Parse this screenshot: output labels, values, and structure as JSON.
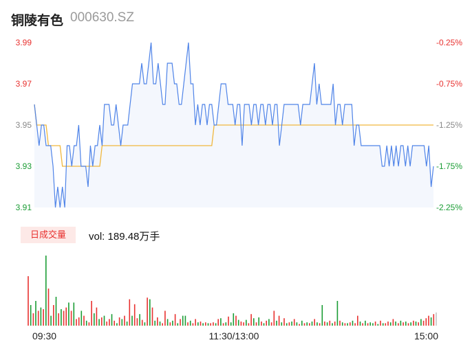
{
  "header": {
    "name": "铜陵有色",
    "code": "000630.SZ"
  },
  "volume_panel": {
    "label": "日成交量",
    "vol_text": "vol: 189.48万手"
  },
  "colors": {
    "price_line": "#4e83e8",
    "avg_line": "#f0b73c",
    "price_fill": "#f4f7fd",
    "up": "#e8312f",
    "down": "#1a9c34",
    "flat": "#888888"
  },
  "chart_data": {
    "type": "line",
    "title": "",
    "xlabel": "",
    "ylabel": "",
    "ylim": [
      3.91,
      3.99
    ],
    "y_ticks": [
      "3.99",
      "3.97",
      "3.95",
      "3.93",
      "3.91"
    ],
    "y_tick_colors": [
      "#e8312f",
      "#e8312f",
      "#888888",
      "#1a9c34",
      "#1a9c34"
    ],
    "pct_ticks": [
      "-0.25%",
      "-0.75%",
      "-1.25%",
      "-1.75%",
      "-2.25%"
    ],
    "x_ticks": [
      "09:30",
      "11:30/13:00",
      "15:00"
    ],
    "series": [
      {
        "values": [
          3.96,
          3.95,
          3.94,
          3.95,
          3.95,
          3.94,
          3.94,
          3.94,
          3.93,
          3.91,
          3.92,
          3.91,
          3.92,
          3.91,
          3.94,
          3.94,
          3.93,
          3.94,
          3.94,
          3.95,
          3.93,
          3.93,
          3.93,
          3.92,
          3.94,
          3.93,
          3.94,
          3.94,
          3.95,
          3.94,
          3.96,
          3.96,
          3.96,
          3.95,
          3.95,
          3.96,
          3.95,
          3.94,
          3.95,
          3.95,
          3.95,
          3.96,
          3.97,
          3.97,
          3.97,
          3.97,
          3.98,
          3.97,
          3.97,
          3.98,
          3.99,
          3.97,
          3.97,
          3.98,
          3.97,
          3.96,
          3.96,
          3.98,
          3.98,
          3.98,
          3.97,
          3.97,
          3.96,
          3.96,
          3.97,
          3.98,
          3.99,
          3.97,
          3.97,
          3.95,
          3.96,
          3.95,
          3.96,
          3.96,
          3.95,
          3.96,
          3.96,
          3.95,
          3.95,
          3.96,
          3.97,
          3.97,
          3.97,
          3.96,
          3.96,
          3.96,
          3.95,
          3.96,
          3.96,
          3.94,
          3.96,
          3.96,
          3.96,
          3.95,
          3.96,
          3.96,
          3.95,
          3.96,
          3.96,
          3.95,
          3.96,
          3.96,
          3.95,
          3.96,
          3.96,
          3.94,
          3.95,
          3.96,
          3.96,
          3.96,
          3.96,
          3.96,
          3.96,
          3.96,
          3.95,
          3.96,
          3.96,
          3.96,
          3.96,
          3.97,
          3.98,
          3.96,
          3.97,
          3.96,
          3.96,
          3.96,
          3.96,
          3.96,
          3.97,
          3.95,
          3.96,
          3.96,
          3.95,
          3.96,
          3.96,
          3.96,
          3.96,
          3.94,
          3.95,
          3.95,
          3.94,
          3.94,
          3.94,
          3.94,
          3.94,
          3.94,
          3.94,
          3.94,
          3.94,
          3.93,
          3.93,
          3.94,
          3.93,
          3.94,
          3.93,
          3.94,
          3.93,
          3.94,
          3.94,
          3.93,
          3.94,
          3.93,
          3.94,
          3.94,
          3.94,
          3.94,
          3.94,
          3.94,
          3.93,
          3.94,
          3.92,
          3.93
        ],
        "color": "#4e83e8"
      },
      {
        "values": [
          3.96,
          3.95,
          3.95,
          3.95,
          3.95,
          3.95,
          3.94,
          3.94,
          3.94,
          3.94,
          3.94,
          3.94,
          3.93,
          3.93,
          3.93,
          3.93,
          3.93,
          3.93,
          3.93,
          3.93,
          3.93,
          3.93,
          3.93,
          3.93,
          3.93,
          3.93,
          3.93,
          3.93,
          3.93,
          3.94,
          3.94,
          3.94,
          3.94,
          3.94,
          3.94,
          3.94,
          3.94,
          3.94,
          3.94,
          3.94,
          3.94,
          3.94,
          3.94,
          3.94,
          3.94,
          3.94,
          3.94,
          3.94,
          3.94,
          3.94,
          3.94,
          3.94,
          3.94,
          3.94,
          3.94,
          3.94,
          3.94,
          3.94,
          3.94,
          3.94,
          3.94,
          3.94,
          3.94,
          3.94,
          3.94,
          3.94,
          3.94,
          3.94,
          3.94,
          3.94,
          3.94,
          3.94,
          3.94,
          3.94,
          3.94,
          3.94,
          3.94,
          3.95,
          3.95,
          3.95,
          3.95,
          3.95,
          3.95,
          3.95,
          3.95,
          3.95,
          3.95,
          3.95,
          3.95,
          3.95,
          3.95,
          3.95,
          3.95,
          3.95,
          3.95,
          3.95,
          3.95,
          3.95,
          3.95,
          3.95,
          3.95,
          3.95,
          3.95,
          3.95,
          3.95,
          3.95,
          3.95,
          3.95,
          3.95,
          3.95,
          3.95,
          3.95,
          3.95,
          3.95,
          3.95,
          3.95,
          3.95,
          3.95,
          3.95,
          3.95,
          3.95,
          3.95,
          3.95,
          3.95,
          3.95,
          3.95,
          3.95,
          3.95,
          3.95,
          3.95,
          3.95,
          3.95,
          3.95,
          3.95,
          3.95,
          3.95,
          3.95,
          3.95,
          3.95,
          3.95,
          3.95,
          3.95,
          3.95,
          3.95,
          3.95,
          3.95,
          3.95,
          3.95,
          3.95,
          3.95,
          3.95,
          3.95,
          3.95,
          3.95,
          3.95,
          3.95,
          3.95,
          3.95,
          3.95,
          3.95,
          3.95,
          3.95,
          3.95,
          3.95,
          3.95,
          3.95,
          3.95,
          3.95,
          3.95,
          3.95,
          3.95,
          3.95
        ],
        "color": "#f0b73c"
      }
    ],
    "volume": [
      {
        "v": 60,
        "d": "up"
      },
      {
        "v": 25,
        "d": "down"
      },
      {
        "v": 15,
        "d": "up"
      },
      {
        "v": 30,
        "d": "down"
      },
      {
        "v": 18,
        "d": "up"
      },
      {
        "v": 22,
        "d": "down"
      },
      {
        "v": 20,
        "d": "up"
      },
      {
        "v": 85,
        "d": "down"
      },
      {
        "v": 45,
        "d": "up"
      },
      {
        "v": 12,
        "d": "down"
      },
      {
        "v": 25,
        "d": "up"
      },
      {
        "v": 35,
        "d": "down"
      },
      {
        "v": 15,
        "d": "up"
      },
      {
        "v": 20,
        "d": "down"
      },
      {
        "v": 18,
        "d": "up"
      },
      {
        "v": 22,
        "d": "up"
      },
      {
        "v": 28,
        "d": "down"
      },
      {
        "v": 18,
        "d": "up"
      },
      {
        "v": 28,
        "d": "down"
      },
      {
        "v": 8,
        "d": "up"
      },
      {
        "v": 10,
        "d": "up"
      },
      {
        "v": 18,
        "d": "down"
      },
      {
        "v": 12,
        "d": "up"
      },
      {
        "v": 6,
        "d": "down"
      },
      {
        "v": 4,
        "d": "up"
      },
      {
        "v": 30,
        "d": "up"
      },
      {
        "v": 15,
        "d": "down"
      },
      {
        "v": 22,
        "d": "up"
      },
      {
        "v": 8,
        "d": "down"
      },
      {
        "v": 10,
        "d": "up"
      },
      {
        "v": 12,
        "d": "down"
      },
      {
        "v": 5,
        "d": "up"
      },
      {
        "v": 8,
        "d": "up"
      },
      {
        "v": 14,
        "d": "down"
      },
      {
        "v": 6,
        "d": "up"
      },
      {
        "v": 3,
        "d": "down"
      },
      {
        "v": 10,
        "d": "up"
      },
      {
        "v": 8,
        "d": "down"
      },
      {
        "v": 12,
        "d": "up"
      },
      {
        "v": 5,
        "d": "down"
      },
      {
        "v": 32,
        "d": "up"
      },
      {
        "v": 12,
        "d": "down"
      },
      {
        "v": 26,
        "d": "up"
      },
      {
        "v": 9,
        "d": "up"
      },
      {
        "v": 14,
        "d": "down"
      },
      {
        "v": 7,
        "d": "up"
      },
      {
        "v": 4,
        "d": "down"
      },
      {
        "v": 34,
        "d": "up"
      },
      {
        "v": 32,
        "d": "down"
      },
      {
        "v": 22,
        "d": "up"
      },
      {
        "v": 6,
        "d": "down"
      },
      {
        "v": 10,
        "d": "up"
      },
      {
        "v": 5,
        "d": "down"
      },
      {
        "v": 3,
        "d": "up"
      },
      {
        "v": 18,
        "d": "up"
      },
      {
        "v": 8,
        "d": "down"
      },
      {
        "v": 4,
        "d": "up"
      },
      {
        "v": 6,
        "d": "down"
      },
      {
        "v": 14,
        "d": "up"
      },
      {
        "v": 3,
        "d": "down"
      },
      {
        "v": 8,
        "d": "up"
      },
      {
        "v": 12,
        "d": "down"
      },
      {
        "v": 12,
        "d": "down"
      },
      {
        "v": 4,
        "d": "up"
      },
      {
        "v": 6,
        "d": "down"
      },
      {
        "v": 3,
        "d": "up"
      },
      {
        "v": 8,
        "d": "up"
      },
      {
        "v": 4,
        "d": "down"
      },
      {
        "v": 5,
        "d": "up"
      },
      {
        "v": 3,
        "d": "down"
      },
      {
        "v": 4,
        "d": "up"
      },
      {
        "v": 3,
        "d": "down"
      },
      {
        "v": 3,
        "d": "up"
      },
      {
        "v": 4,
        "d": "up"
      },
      {
        "v": 3,
        "d": "down"
      },
      {
        "v": 8,
        "d": "up"
      },
      {
        "v": 9,
        "d": "down"
      },
      {
        "v": 3,
        "d": "up"
      },
      {
        "v": 4,
        "d": "down"
      },
      {
        "v": 11,
        "d": "up"
      },
      {
        "v": 4,
        "d": "down"
      },
      {
        "v": 15,
        "d": "down"
      },
      {
        "v": 12,
        "d": "up"
      },
      {
        "v": 7,
        "d": "down"
      },
      {
        "v": 5,
        "d": "up"
      },
      {
        "v": 4,
        "d": "up"
      },
      {
        "v": 7,
        "d": "down"
      },
      {
        "v": 3,
        "d": "up"
      },
      {
        "v": 14,
        "d": "up"
      },
      {
        "v": 9,
        "d": "down"
      },
      {
        "v": 4,
        "d": "up"
      },
      {
        "v": 10,
        "d": "down"
      },
      {
        "v": 5,
        "d": "up"
      },
      {
        "v": 3,
        "d": "down"
      },
      {
        "v": 6,
        "d": "up"
      },
      {
        "v": 8,
        "d": "down"
      },
      {
        "v": 4,
        "d": "up"
      },
      {
        "v": 18,
        "d": "up"
      },
      {
        "v": 6,
        "d": "down"
      },
      {
        "v": 12,
        "d": "up"
      },
      {
        "v": 4,
        "d": "down"
      },
      {
        "v": 9,
        "d": "up"
      },
      {
        "v": 3,
        "d": "down"
      },
      {
        "v": 4,
        "d": "up"
      },
      {
        "v": 5,
        "d": "down"
      },
      {
        "v": 8,
        "d": "up"
      },
      {
        "v": 4,
        "d": "down"
      },
      {
        "v": 2,
        "d": "up"
      },
      {
        "v": 6,
        "d": "down"
      },
      {
        "v": 3,
        "d": "up"
      },
      {
        "v": 4,
        "d": "down"
      },
      {
        "v": 3,
        "d": "up"
      },
      {
        "v": 5,
        "d": "down"
      },
      {
        "v": 8,
        "d": "up"
      },
      {
        "v": 4,
        "d": "down"
      },
      {
        "v": 3,
        "d": "up"
      },
      {
        "v": 25,
        "d": "down"
      },
      {
        "v": 5,
        "d": "up"
      },
      {
        "v": 4,
        "d": "down"
      },
      {
        "v": 6,
        "d": "up"
      },
      {
        "v": 3,
        "d": "down"
      },
      {
        "v": 5,
        "d": "up"
      },
      {
        "v": 30,
        "d": "down"
      },
      {
        "v": 6,
        "d": "up"
      },
      {
        "v": 4,
        "d": "down"
      },
      {
        "v": 3,
        "d": "up"
      },
      {
        "v": 3,
        "d": "down"
      },
      {
        "v": 4,
        "d": "up"
      },
      {
        "v": 6,
        "d": "down"
      },
      {
        "v": 3,
        "d": "up"
      },
      {
        "v": 12,
        "d": "up"
      },
      {
        "v": 5,
        "d": "down"
      },
      {
        "v": 3,
        "d": "up"
      },
      {
        "v": 6,
        "d": "down"
      },
      {
        "v": 3,
        "d": "up"
      },
      {
        "v": 4,
        "d": "down"
      },
      {
        "v": 3,
        "d": "down"
      },
      {
        "v": 5,
        "d": "up"
      },
      {
        "v": 2,
        "d": "down"
      },
      {
        "v": 6,
        "d": "up"
      },
      {
        "v": 3,
        "d": "down"
      },
      {
        "v": 3,
        "d": "up"
      },
      {
        "v": 5,
        "d": "up"
      },
      {
        "v": 4,
        "d": "down"
      },
      {
        "v": 8,
        "d": "up"
      },
      {
        "v": 5,
        "d": "down"
      },
      {
        "v": 3,
        "d": "up"
      },
      {
        "v": 6,
        "d": "down"
      },
      {
        "v": 4,
        "d": "up"
      },
      {
        "v": 5,
        "d": "down"
      },
      {
        "v": 3,
        "d": "up"
      },
      {
        "v": 4,
        "d": "down"
      },
      {
        "v": 6,
        "d": "up"
      },
      {
        "v": 5,
        "d": "down"
      },
      {
        "v": 4,
        "d": "up"
      },
      {
        "v": 8,
        "d": "down"
      },
      {
        "v": 6,
        "d": "up"
      },
      {
        "v": 9,
        "d": "up"
      },
      {
        "v": 12,
        "d": "up"
      },
      {
        "v": 10,
        "d": "down"
      },
      {
        "v": 14,
        "d": "up"
      },
      {
        "v": 16,
        "d": "flat"
      }
    ]
  }
}
